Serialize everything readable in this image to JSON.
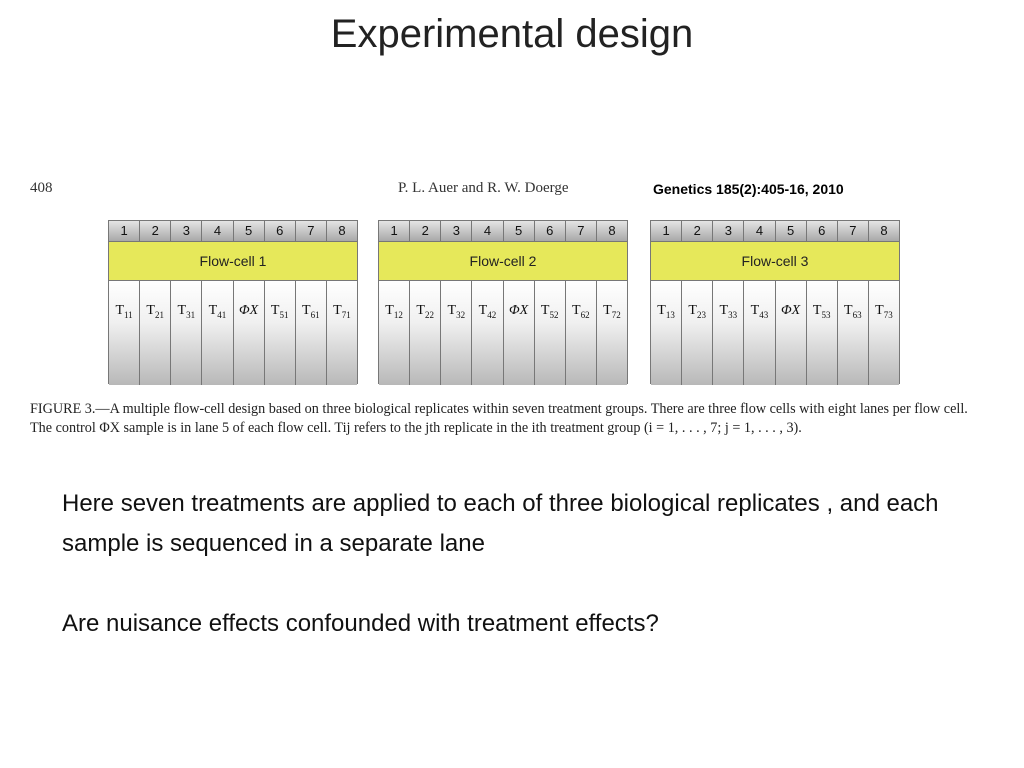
{
  "slide": {
    "title": "Experimental design"
  },
  "figure": {
    "page_number": "408",
    "authors": "P. L. Auer and R. W. Doerge",
    "citation": "Genetics 185(2):405-16, 2010",
    "lane_numbers": [
      "1",
      "2",
      "3",
      "4",
      "5",
      "6",
      "7",
      "8"
    ],
    "flow_cells": [
      {
        "label": "Flow-cell 1",
        "lanes": [
          {
            "t": "T",
            "s": "11"
          },
          {
            "t": "T",
            "s": "21"
          },
          {
            "t": "T",
            "s": "31"
          },
          {
            "t": "T",
            "s": "41"
          },
          {
            "t": "ΦX",
            "s": ""
          },
          {
            "t": "T",
            "s": "51"
          },
          {
            "t": "T",
            "s": "61"
          },
          {
            "t": "T",
            "s": "71"
          }
        ]
      },
      {
        "label": "Flow-cell 2",
        "lanes": [
          {
            "t": "T",
            "s": "12"
          },
          {
            "t": "T",
            "s": "22"
          },
          {
            "t": "T",
            "s": "32"
          },
          {
            "t": "T",
            "s": "42"
          },
          {
            "t": "ΦX",
            "s": ""
          },
          {
            "t": "T",
            "s": "52"
          },
          {
            "t": "T",
            "s": "62"
          },
          {
            "t": "T",
            "s": "72"
          }
        ]
      },
      {
        "label": "Flow-cell 3",
        "lanes": [
          {
            "t": "T",
            "s": "13"
          },
          {
            "t": "T",
            "s": "23"
          },
          {
            "t": "T",
            "s": "33"
          },
          {
            "t": "T",
            "s": "43"
          },
          {
            "t": "ΦX",
            "s": ""
          },
          {
            "t": "T",
            "s": "53"
          },
          {
            "t": "T",
            "s": "63"
          },
          {
            "t": "T",
            "s": "73"
          }
        ]
      }
    ],
    "caption": "FIGURE 3.—A multiple flow-cell design based on three biological replicates within seven treatment groups. There are three flow cells with eight lanes per flow cell. The control ΦX sample is in lane 5 of each flow cell. Tij refers to the jth replicate in the ith treatment group (i = 1, . . . , 7; j = 1, . . . , 3)."
  },
  "body": {
    "paragraph1": "Here seven treatments are applied to each of three biological replicates , and each sample is sequenced in a separate lane",
    "paragraph2": "Are nuisance effects confounded with treatment effects?"
  }
}
